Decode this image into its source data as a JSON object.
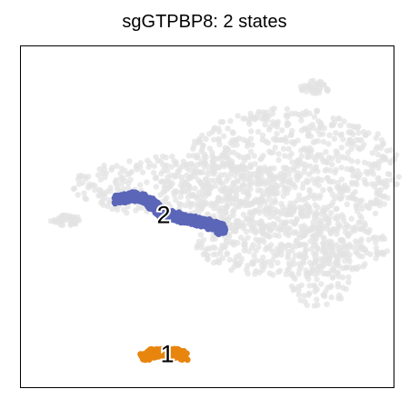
{
  "chart_data": {
    "type": "scatter",
    "title": "sgGTPBP8: 2 states",
    "xlabel": "",
    "ylabel": "",
    "xlim": [
      0,
      100
    ],
    "ylim": [
      0,
      100
    ],
    "grid": false,
    "colors": {
      "background_cells": "#e3e3e3",
      "state_1": "#e8850e",
      "state_2": "#5b66b8"
    },
    "background_clusters": [
      {
        "name": "upper-right-loop",
        "cx": 72,
        "cy": 63,
        "rx": 30,
        "ry": 19
      },
      {
        "name": "central-band",
        "cx": 42,
        "cy": 59,
        "rx": 28,
        "ry": 9
      },
      {
        "name": "lower-right-wing",
        "cx": 73,
        "cy": 42,
        "rx": 26,
        "ry": 10
      },
      {
        "name": "right-tail",
        "cx": 80,
        "cy": 35,
        "rx": 9,
        "ry": 12
      },
      {
        "name": "small-top-island",
        "cx": 79,
        "cy": 88,
        "rx": 4,
        "ry": 2
      },
      {
        "name": "left-fragment",
        "cx": 12,
        "cy": 49,
        "rx": 4,
        "ry": 1.5
      }
    ],
    "series": [
      {
        "name": "2",
        "color": "#5b66b8",
        "label_x": 38.3,
        "label_y": 50.5,
        "points": [
          [
            26,
            55
          ],
          [
            30,
            56
          ],
          [
            34,
            55
          ],
          [
            36,
            53
          ],
          [
            38,
            51
          ],
          [
            42,
            50
          ],
          [
            46,
            49
          ],
          [
            50,
            48
          ],
          [
            53,
            47
          ],
          [
            54,
            46
          ]
        ]
      },
      {
        "name": "1",
        "color": "#e8850e",
        "label_x": 39.3,
        "label_y": 9.8,
        "points": [
          [
            33,
            9
          ],
          [
            36,
            10
          ],
          [
            39,
            10
          ],
          [
            42,
            10
          ],
          [
            44,
            9
          ]
        ]
      }
    ]
  }
}
